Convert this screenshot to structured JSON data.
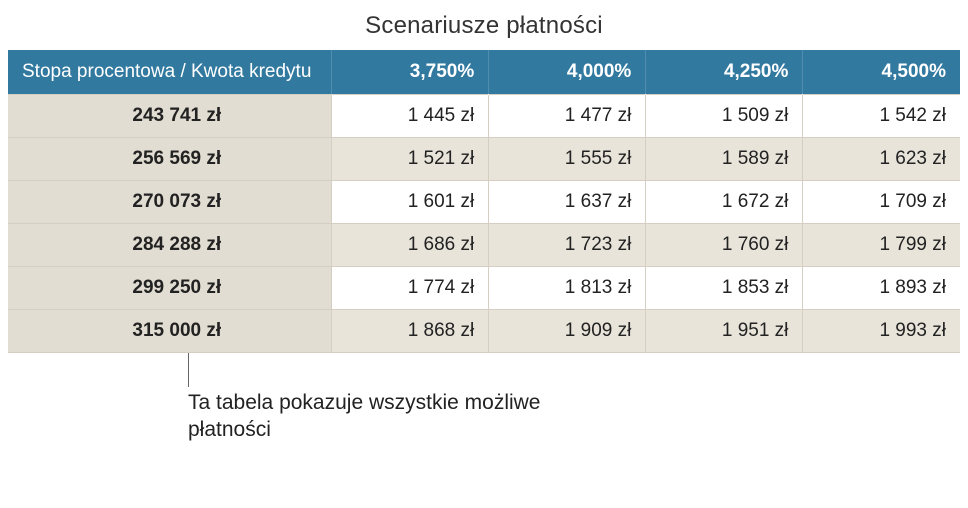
{
  "title": "Scenariusze płatności",
  "colors": {
    "header_bg": "#3279a0",
    "header_text": "#ffffff",
    "row_alt_bg": "#e8e4da",
    "row_bg": "#ffffff",
    "loan_col_bg": "#e2ddd2",
    "border": "#d4cfc2",
    "title": "#333333",
    "caption": "#222222",
    "leader": "#666666"
  },
  "table": {
    "type": "table",
    "header_label": "Stopa procentowa / Kwota kredytu",
    "rate_columns": [
      "3,750%",
      "4,000%",
      "4,250%",
      "4,500%"
    ],
    "rows": [
      {
        "loan": "243 741 zł",
        "cells": [
          "1 445 zł",
          "1 477 zł",
          "1 509 zł",
          "1 542 zł"
        ]
      },
      {
        "loan": "256 569 zł",
        "cells": [
          "1 521 zł",
          "1 555 zł",
          "1 589 zł",
          "1 623 zł"
        ]
      },
      {
        "loan": "270 073 zł",
        "cells": [
          "1 601 zł",
          "1 637 zł",
          "1 672 zł",
          "1 709 zł"
        ]
      },
      {
        "loan": "284 288 zł",
        "cells": [
          "1 686 zł",
          "1 723 zł",
          "1 760 zł",
          "1 799 zł"
        ]
      },
      {
        "loan": "299 250 zł",
        "cells": [
          "1 774 zł",
          "1 813 zł",
          "1 853 zł",
          "1 893 zł"
        ]
      },
      {
        "loan": "315 000 zł",
        "cells": [
          "1 868 zł",
          "1 909 zł",
          "1 951 zł",
          "1 993 zł"
        ]
      }
    ],
    "column_widths_pct": [
      34,
      16.5,
      16.5,
      16.5,
      16.5
    ],
    "title_fontsize_pt": 18,
    "header_fontsize_pt": 14,
    "cell_fontsize_pt": 14
  },
  "caption": "Ta tabela pokazuje wszystkie możliwe płatności"
}
